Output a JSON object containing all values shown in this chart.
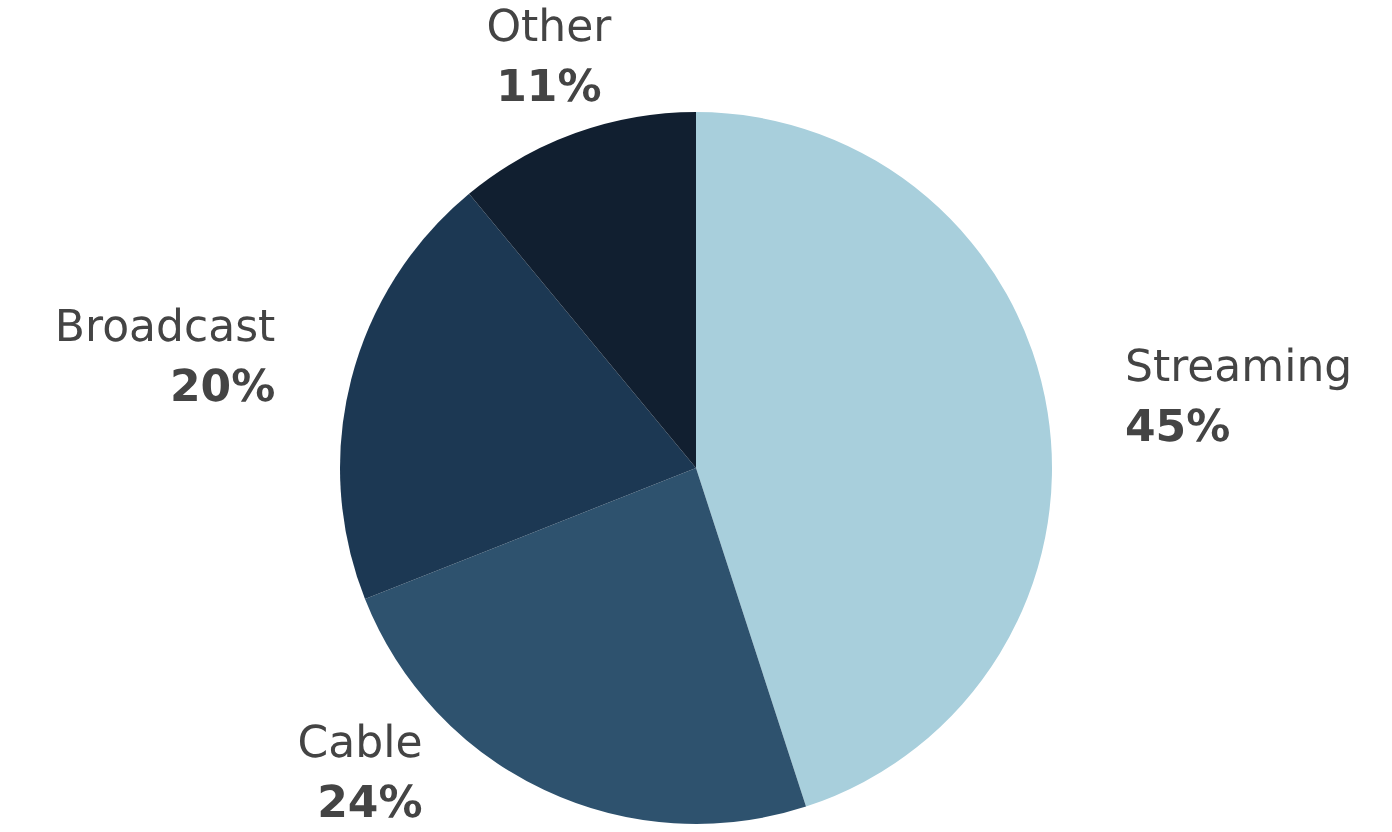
{
  "chart_data": {
    "type": "pie",
    "categories": [
      "Streaming",
      "Cable",
      "Broadcast",
      "Other"
    ],
    "values": [
      45,
      24,
      20,
      11
    ],
    "colors": [
      "#a8cfdc",
      "#2e526e",
      "#1c3853",
      "#111f30"
    ],
    "value_labels": [
      "45%",
      "24%",
      "20%",
      "11%"
    ],
    "legend": false
  }
}
